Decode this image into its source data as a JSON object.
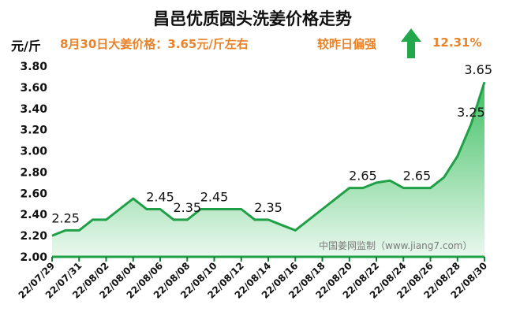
{
  "header": {
    "title": "昌邑优质圆头洗姜价格走势",
    "unit": "元/斤",
    "price_note": "8月30日大姜价格：3.65元/斤左右",
    "compare_label": "较昨日偏强",
    "compare_value": "12.31%",
    "compare_icon": "up-arrow-icon",
    "accent_color": "#e8832a",
    "arrow_color": "#22a84a"
  },
  "watermark": "中国姜网监制（www.jiang7.com）",
  "chart_data": {
    "type": "area",
    "title": "昌邑优质圆头洗姜价格走势",
    "ylabel": "元/斤",
    "xlabel": "",
    "ylim": [
      2.0,
      3.8
    ],
    "yticks": [
      "2.00",
      "2.20",
      "2.40",
      "2.60",
      "2.80",
      "3.00",
      "3.20",
      "3.40",
      "3.60",
      "3.80"
    ],
    "x": [
      "22/07/29",
      "22/07/30",
      "22/07/31",
      "22/08/01",
      "22/08/02",
      "22/08/03",
      "22/08/04",
      "22/08/05",
      "22/08/06",
      "22/08/07",
      "22/08/08",
      "22/08/09",
      "22/08/10",
      "22/08/11",
      "22/08/12",
      "22/08/13",
      "22/08/14",
      "22/08/15",
      "22/08/16",
      "22/08/17",
      "22/08/18",
      "22/08/19",
      "22/08/20",
      "22/08/21",
      "22/08/22",
      "22/08/23",
      "22/08/24",
      "22/08/25",
      "22/08/26",
      "22/08/27",
      "22/08/28",
      "22/08/29",
      "22/08/30"
    ],
    "xticks": [
      "22/07/29",
      "22/07/31",
      "22/08/02",
      "22/08/04",
      "22/08/06",
      "22/08/08",
      "22/08/10",
      "22/08/12",
      "22/08/14",
      "22/08/16",
      "22/08/18",
      "22/08/20",
      "22/08/22",
      "22/08/24",
      "22/08/26",
      "22/08/28",
      "22/08/30"
    ],
    "values": [
      2.2,
      2.25,
      2.25,
      2.35,
      2.35,
      2.45,
      2.55,
      2.45,
      2.45,
      2.35,
      2.35,
      2.45,
      2.45,
      2.45,
      2.45,
      2.35,
      2.35,
      2.3,
      2.25,
      2.35,
      2.45,
      2.55,
      2.65,
      2.65,
      2.7,
      2.72,
      2.65,
      2.65,
      2.65,
      2.75,
      2.95,
      3.25,
      3.65
    ],
    "data_labels": [
      {
        "index": 1,
        "text": "2.25"
      },
      {
        "index": 8,
        "text": "2.45"
      },
      {
        "index": 10,
        "text": "2.35"
      },
      {
        "index": 12,
        "text": "2.45"
      },
      {
        "index": 16,
        "text": "2.35"
      },
      {
        "index": 23,
        "text": "2.65"
      },
      {
        "index": 27,
        "text": "2.65"
      },
      {
        "index": 31,
        "text": "3.25"
      },
      {
        "index": 32,
        "text": "3.65"
      }
    ],
    "line_color": "#1fa046",
    "fill_top_color": "#3fc063",
    "fill_bottom_color": "#eaf8ee",
    "grid": false
  }
}
